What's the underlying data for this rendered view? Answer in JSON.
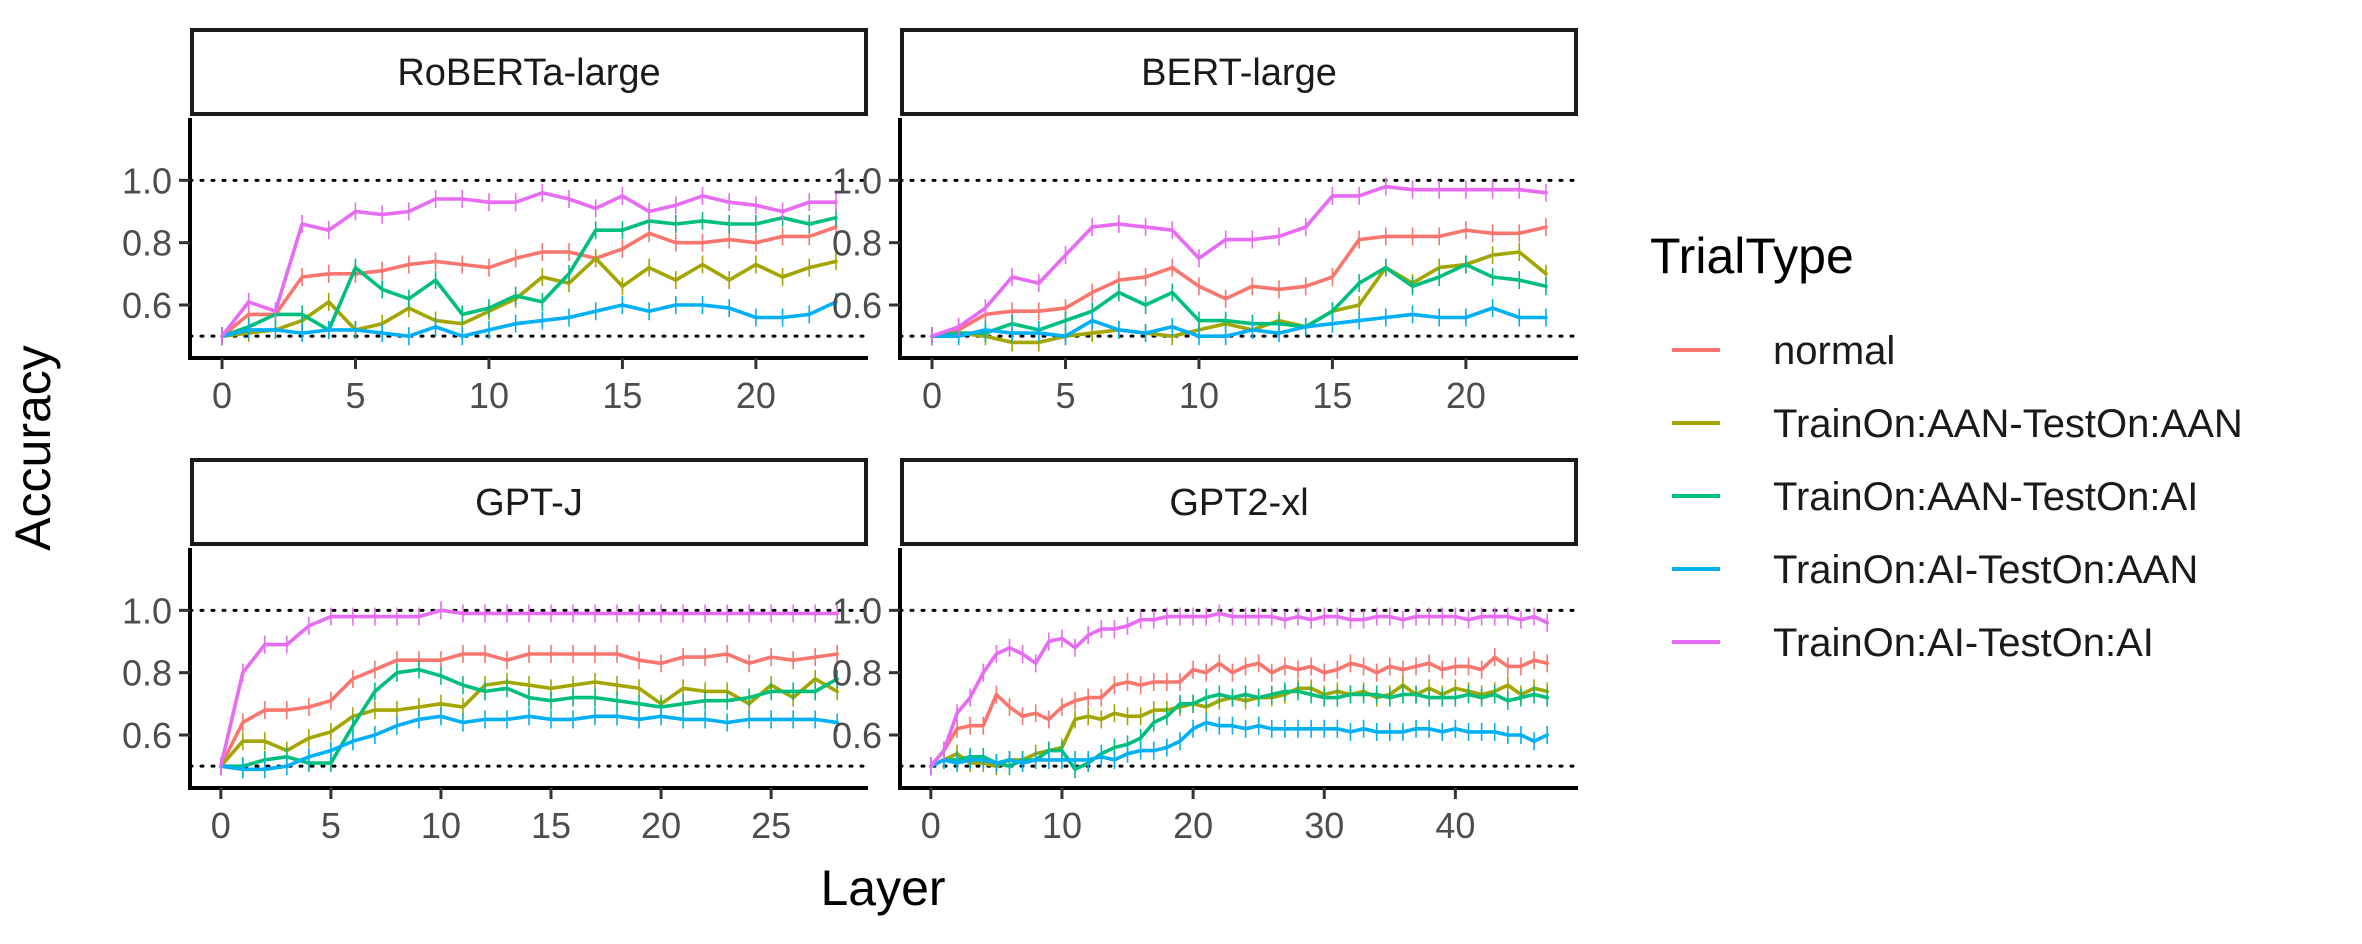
{
  "chart_data": {
    "type": "line",
    "xlabel": "Layer",
    "ylabel": "Accuracy",
    "ylim": [
      0.43,
      1.2
    ],
    "y_ticks": [
      0.6,
      0.8,
      1.0
    ],
    "y_tick_labels": [
      "0.6",
      "0.8",
      "1.0"
    ],
    "reference_lines": [
      0.5,
      1.0
    ],
    "grid": false,
    "legend": {
      "title": "TrialType",
      "position": "right",
      "entries": [
        {
          "name": "normal",
          "color": "#F8766D"
        },
        {
          "name": "TrainOn:AAN-TestOn:AAN",
          "color": "#A3A500"
        },
        {
          "name": "TrainOn:AAN-TestOn:AI",
          "color": "#00BF7D"
        },
        {
          "name": "TrainOn:AI-TestOn:AAN",
          "color": "#00B0F6"
        },
        {
          "name": "TrainOn:AI-TestOn:AI",
          "color": "#E76BF3"
        }
      ]
    },
    "panels": [
      {
        "title": "RoBERTa-large",
        "xlim": [
          -1.2,
          24.2
        ],
        "x_ticks": [
          0,
          5,
          10,
          15,
          20
        ],
        "x_tick_labels": [
          "0",
          "5",
          "10",
          "15",
          "20"
        ],
        "series": [
          {
            "name": "normal",
            "values": [
              0.5,
              0.57,
              0.57,
              0.69,
              0.7,
              0.7,
              0.71,
              0.73,
              0.74,
              0.73,
              0.72,
              0.75,
              0.77,
              0.77,
              0.75,
              0.78,
              0.83,
              0.8,
              0.8,
              0.81,
              0.8,
              0.82,
              0.82,
              0.85
            ]
          },
          {
            "name": "TrainOn:AAN-TestOn:AAN",
            "values": [
              0.5,
              0.51,
              0.52,
              0.55,
              0.61,
              0.52,
              0.54,
              0.59,
              0.55,
              0.54,
              0.58,
              0.62,
              0.69,
              0.67,
              0.75,
              0.66,
              0.72,
              0.68,
              0.73,
              0.68,
              0.73,
              0.69,
              0.72,
              0.74
            ]
          },
          {
            "name": "TrainOn:AAN-TestOn:AI",
            "values": [
              0.5,
              0.53,
              0.57,
              0.57,
              0.52,
              0.72,
              0.65,
              0.62,
              0.68,
              0.57,
              0.59,
              0.63,
              0.61,
              0.7,
              0.84,
              0.84,
              0.87,
              0.86,
              0.87,
              0.86,
              0.86,
              0.88,
              0.86,
              0.88
            ]
          },
          {
            "name": "TrainOn:AI-TestOn:AAN",
            "values": [
              0.5,
              0.52,
              0.52,
              0.51,
              0.52,
              0.52,
              0.51,
              0.5,
              0.53,
              0.5,
              0.52,
              0.54,
              0.55,
              0.56,
              0.58,
              0.6,
              0.58,
              0.6,
              0.6,
              0.59,
              0.56,
              0.56,
              0.57,
              0.61
            ]
          },
          {
            "name": "TrainOn:AI-TestOn:AI",
            "values": [
              0.5,
              0.61,
              0.58,
              0.86,
              0.84,
              0.9,
              0.89,
              0.9,
              0.94,
              0.94,
              0.93,
              0.93,
              0.96,
              0.94,
              0.91,
              0.95,
              0.9,
              0.92,
              0.95,
              0.93,
              0.92,
              0.9,
              0.93,
              0.93
            ]
          }
        ]
      },
      {
        "title": "BERT-large",
        "xlim": [
          -1.2,
          24.2
        ],
        "x_ticks": [
          0,
          5,
          10,
          15,
          20
        ],
        "x_tick_labels": [
          "0",
          "5",
          "10",
          "15",
          "20"
        ],
        "series": [
          {
            "name": "normal",
            "values": [
              0.5,
              0.52,
              0.57,
              0.58,
              0.58,
              0.59,
              0.64,
              0.68,
              0.69,
              0.72,
              0.66,
              0.62,
              0.66,
              0.65,
              0.66,
              0.69,
              0.81,
              0.82,
              0.82,
              0.82,
              0.84,
              0.83,
              0.83,
              0.85
            ]
          },
          {
            "name": "TrainOn:AAN-TestOn:AAN",
            "values": [
              0.5,
              0.51,
              0.5,
              0.48,
              0.48,
              0.5,
              0.51,
              0.52,
              0.51,
              0.5,
              0.52,
              0.54,
              0.52,
              0.55,
              0.53,
              0.58,
              0.6,
              0.72,
              0.67,
              0.72,
              0.73,
              0.76,
              0.77,
              0.7
            ]
          },
          {
            "name": "TrainOn:AAN-TestOn:AI",
            "values": [
              0.5,
              0.51,
              0.51,
              0.54,
              0.52,
              0.55,
              0.58,
              0.64,
              0.6,
              0.64,
              0.55,
              0.55,
              0.54,
              0.54,
              0.53,
              0.58,
              0.67,
              0.72,
              0.66,
              0.69,
              0.73,
              0.69,
              0.68,
              0.66
            ]
          },
          {
            "name": "TrainOn:AI-TestOn:AAN",
            "values": [
              0.5,
              0.5,
              0.52,
              0.51,
              0.51,
              0.5,
              0.55,
              0.52,
              0.51,
              0.53,
              0.5,
              0.5,
              0.52,
              0.51,
              0.53,
              0.54,
              0.55,
              0.56,
              0.57,
              0.56,
              0.56,
              0.59,
              0.56,
              0.56
            ]
          },
          {
            "name": "TrainOn:AI-TestOn:AI",
            "values": [
              0.5,
              0.53,
              0.59,
              0.69,
              0.67,
              0.76,
              0.85,
              0.86,
              0.85,
              0.84,
              0.75,
              0.81,
              0.81,
              0.82,
              0.85,
              0.95,
              0.95,
              0.98,
              0.97,
              0.97,
              0.97,
              0.97,
              0.97,
              0.96
            ]
          }
        ]
      },
      {
        "title": "GPT-J",
        "xlim": [
          -1.4,
          29.4
        ],
        "x_ticks": [
          0,
          5,
          10,
          15,
          20,
          25
        ],
        "x_tick_labels": [
          "0",
          "5",
          "10",
          "15",
          "20",
          "25"
        ],
        "series": [
          {
            "name": "normal",
            "values": [
              0.5,
              0.64,
              0.68,
              0.68,
              0.69,
              0.71,
              0.78,
              0.81,
              0.84,
              0.84,
              0.84,
              0.86,
              0.86,
              0.84,
              0.86,
              0.86,
              0.86,
              0.86,
              0.86,
              0.84,
              0.83,
              0.85,
              0.85,
              0.86,
              0.83,
              0.85,
              0.84,
              0.85,
              0.86
            ]
          },
          {
            "name": "TrainOn:AAN-TestOn:AAN",
            "values": [
              0.5,
              0.58,
              0.58,
              0.55,
              0.59,
              0.61,
              0.66,
              0.68,
              0.68,
              0.69,
              0.7,
              0.69,
              0.76,
              0.77,
              0.76,
              0.75,
              0.76,
              0.77,
              0.76,
              0.75,
              0.7,
              0.75,
              0.74,
              0.74,
              0.7,
              0.76,
              0.72,
              0.78,
              0.74
            ]
          },
          {
            "name": "TrainOn:AAN-TestOn:AI",
            "values": [
              0.5,
              0.5,
              0.52,
              0.53,
              0.51,
              0.51,
              0.63,
              0.74,
              0.8,
              0.81,
              0.79,
              0.76,
              0.74,
              0.75,
              0.72,
              0.71,
              0.72,
              0.72,
              0.71,
              0.7,
              0.69,
              0.7,
              0.71,
              0.71,
              0.72,
              0.74,
              0.74,
              0.74,
              0.78
            ]
          },
          {
            "name": "TrainOn:AI-TestOn:AAN",
            "values": [
              0.5,
              0.49,
              0.49,
              0.5,
              0.53,
              0.55,
              0.58,
              0.6,
              0.63,
              0.65,
              0.66,
              0.64,
              0.65,
              0.65,
              0.66,
              0.65,
              0.65,
              0.66,
              0.66,
              0.65,
              0.66,
              0.65,
              0.65,
              0.64,
              0.65,
              0.65,
              0.65,
              0.65,
              0.64
            ]
          },
          {
            "name": "TrainOn:AI-TestOn:AI",
            "values": [
              0.5,
              0.8,
              0.89,
              0.89,
              0.95,
              0.98,
              0.98,
              0.98,
              0.98,
              0.98,
              1.0,
              0.99,
              0.99,
              0.99,
              0.99,
              0.99,
              0.99,
              0.99,
              0.99,
              0.99,
              0.99,
              0.99,
              0.99,
              0.99,
              0.99,
              0.99,
              0.99,
              0.99,
              0.99
            ]
          }
        ]
      },
      {
        "title": "GPT2-xl",
        "xlim": [
          -2.35,
          49.35
        ],
        "x_ticks": [
          0,
          10,
          20,
          30,
          40
        ],
        "x_tick_labels": [
          "0",
          "10",
          "20",
          "30",
          "40"
        ],
        "series": [
          {
            "name": "normal",
            "values": [
              0.5,
              0.55,
              0.62,
              0.63,
              0.63,
              0.73,
              0.69,
              0.66,
              0.67,
              0.65,
              0.69,
              0.71,
              0.72,
              0.72,
              0.76,
              0.77,
              0.76,
              0.77,
              0.77,
              0.77,
              0.81,
              0.8,
              0.83,
              0.8,
              0.82,
              0.83,
              0.8,
              0.82,
              0.81,
              0.82,
              0.8,
              0.81,
              0.83,
              0.82,
              0.8,
              0.82,
              0.81,
              0.82,
              0.83,
              0.81,
              0.82,
              0.82,
              0.81,
              0.85,
              0.82,
              0.82,
              0.84,
              0.83
            ]
          },
          {
            "name": "TrainOn:AAN-TestOn:AAN",
            "values": [
              0.5,
              0.52,
              0.54,
              0.51,
              0.51,
              0.5,
              0.52,
              0.52,
              0.54,
              0.55,
              0.56,
              0.65,
              0.66,
              0.65,
              0.67,
              0.66,
              0.66,
              0.68,
              0.68,
              0.69,
              0.7,
              0.69,
              0.71,
              0.72,
              0.71,
              0.72,
              0.72,
              0.73,
              0.75,
              0.75,
              0.73,
              0.74,
              0.73,
              0.74,
              0.72,
              0.73,
              0.76,
              0.73,
              0.75,
              0.73,
              0.75,
              0.74,
              0.73,
              0.74,
              0.76,
              0.73,
              0.75,
              0.74
            ]
          },
          {
            "name": "TrainOn:AAN-TestOn:AI",
            "values": [
              0.5,
              0.52,
              0.52,
              0.53,
              0.53,
              0.51,
              0.5,
              0.52,
              0.52,
              0.55,
              0.55,
              0.49,
              0.51,
              0.54,
              0.56,
              0.57,
              0.59,
              0.64,
              0.66,
              0.7,
              0.7,
              0.72,
              0.73,
              0.72,
              0.73,
              0.72,
              0.73,
              0.74,
              0.74,
              0.73,
              0.72,
              0.72,
              0.73,
              0.73,
              0.73,
              0.72,
              0.73,
              0.73,
              0.72,
              0.72,
              0.72,
              0.73,
              0.72,
              0.73,
              0.71,
              0.72,
              0.73,
              0.72
            ]
          },
          {
            "name": "TrainOn:AI-TestOn:AAN",
            "values": [
              0.5,
              0.52,
              0.51,
              0.52,
              0.52,
              0.51,
              0.52,
              0.51,
              0.52,
              0.52,
              0.52,
              0.52,
              0.52,
              0.53,
              0.52,
              0.54,
              0.55,
              0.55,
              0.56,
              0.58,
              0.62,
              0.64,
              0.63,
              0.63,
              0.62,
              0.63,
              0.62,
              0.62,
              0.62,
              0.62,
              0.62,
              0.62,
              0.61,
              0.62,
              0.61,
              0.61,
              0.61,
              0.62,
              0.62,
              0.61,
              0.62,
              0.61,
              0.61,
              0.61,
              0.6,
              0.6,
              0.58,
              0.6
            ]
          },
          {
            "name": "TrainOn:AI-TestOn:AI",
            "values": [
              0.5,
              0.55,
              0.67,
              0.72,
              0.8,
              0.86,
              0.88,
              0.86,
              0.83,
              0.9,
              0.91,
              0.88,
              0.92,
              0.94,
              0.94,
              0.95,
              0.97,
              0.97,
              0.98,
              0.98,
              0.98,
              0.98,
              0.99,
              0.98,
              0.98,
              0.98,
              0.98,
              0.97,
              0.98,
              0.97,
              0.98,
              0.98,
              0.97,
              0.97,
              0.98,
              0.98,
              0.97,
              0.98,
              0.98,
              0.98,
              0.98,
              0.97,
              0.98,
              0.98,
              0.98,
              0.97,
              0.98,
              0.96
            ]
          }
        ]
      }
    ]
  }
}
